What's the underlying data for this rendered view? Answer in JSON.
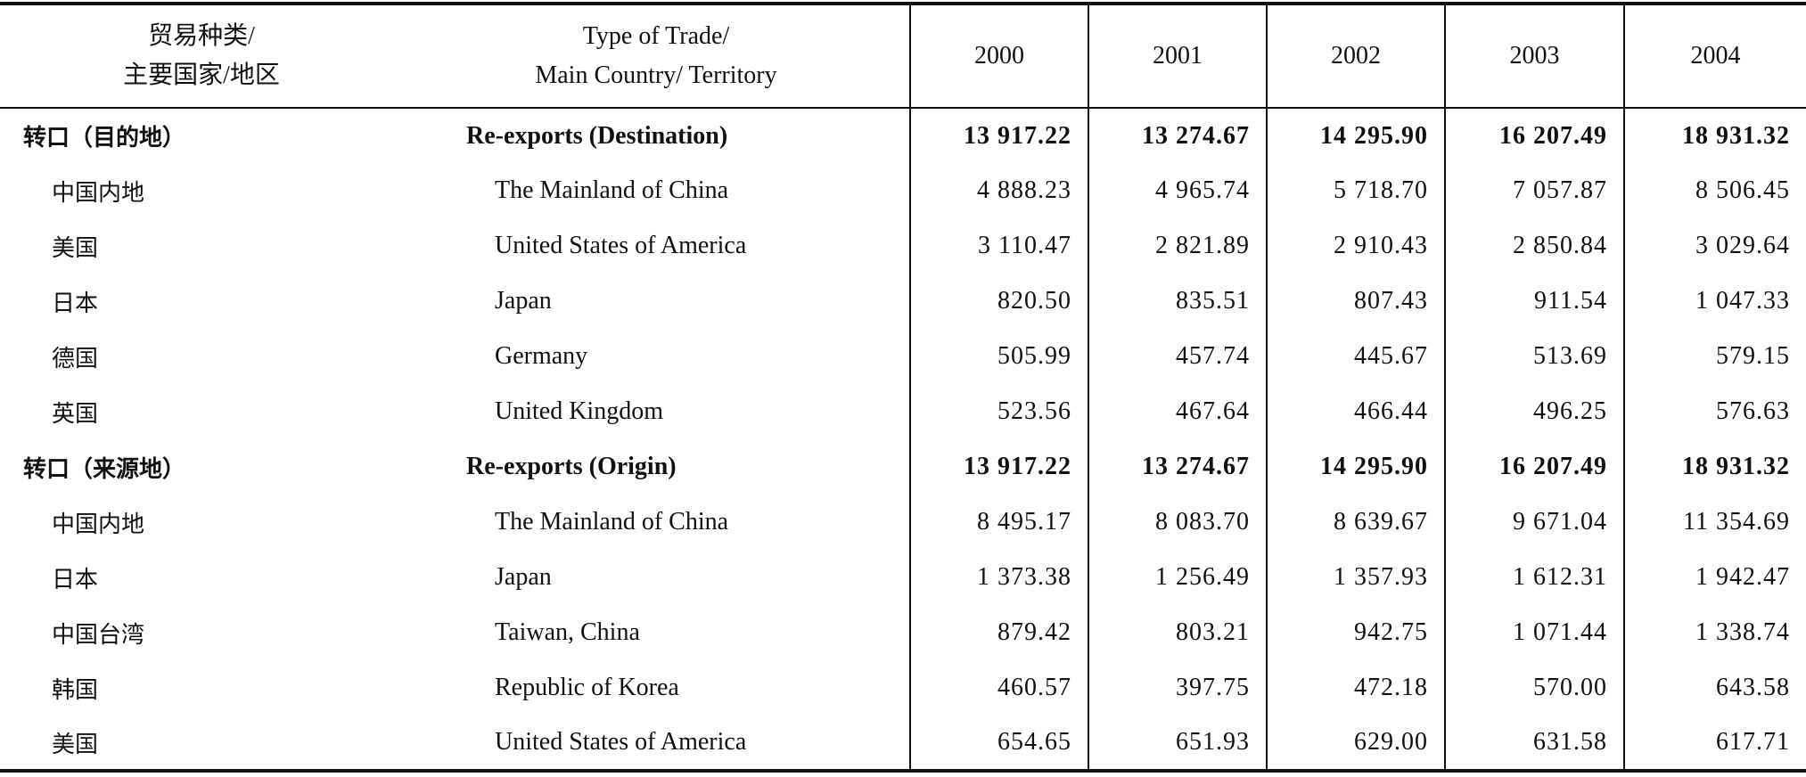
{
  "table": {
    "header": [
      [
        "贸易种类/",
        "主要国家/地区"
      ],
      [
        "Type of Trade/",
        "Main Country/ Territory"
      ],
      "2000",
      "2001",
      "2002",
      "2003",
      "2004"
    ],
    "rows": [
      [
        "转口（目的地）",
        "Re-exports (Destination)",
        "13 917.22",
        "13 274.67",
        "14 295.90",
        "16 207.49",
        "18 931.32"
      ],
      [
        "中国内地",
        "The Mainland of China",
        "4 888.23",
        "4 965.74",
        "5 718.70",
        "7 057.87",
        "8 506.45"
      ],
      [
        "美国",
        "United States of America",
        "3 110.47",
        "2 821.89",
        "2 910.43",
        "2 850.84",
        "3 029.64"
      ],
      [
        "日本",
        "Japan",
        "820.50",
        "835.51",
        "807.43",
        "911.54",
        "1 047.33"
      ],
      [
        "德国",
        "Germany",
        "505.99",
        "457.74",
        "445.67",
        "513.69",
        "579.15"
      ],
      [
        "英国",
        "United Kingdom",
        "523.56",
        "467.64",
        "466.44",
        "496.25",
        "576.63"
      ],
      [
        "转口（来源地）",
        "Re-exports (Origin)",
        "13 917.22",
        "13 274.67",
        "14 295.90",
        "16 207.49",
        "18 931.32"
      ],
      [
        "中国内地",
        "The Mainland of China",
        "8 495.17",
        "8 083.70",
        "8 639.67",
        "9 671.04",
        "11 354.69"
      ],
      [
        "日本",
        "Japan",
        "1 373.38",
        "1 256.49",
        "1 357.93",
        "1 612.31",
        "1 942.47"
      ],
      [
        "中国台湾",
        "Taiwan, China",
        "879.42",
        "803.21",
        "942.75",
        "1 071.44",
        "1 338.74"
      ],
      [
        "韩国",
        "Republic of Korea",
        "460.57",
        "397.75",
        "472.18",
        "570.00",
        "643.58"
      ],
      [
        "美国",
        "United States of America",
        "654.65",
        "651.93",
        "629.00",
        "631.58",
        "617.71"
      ]
    ],
    "bold_rows": [
      0,
      6
    ]
  }
}
